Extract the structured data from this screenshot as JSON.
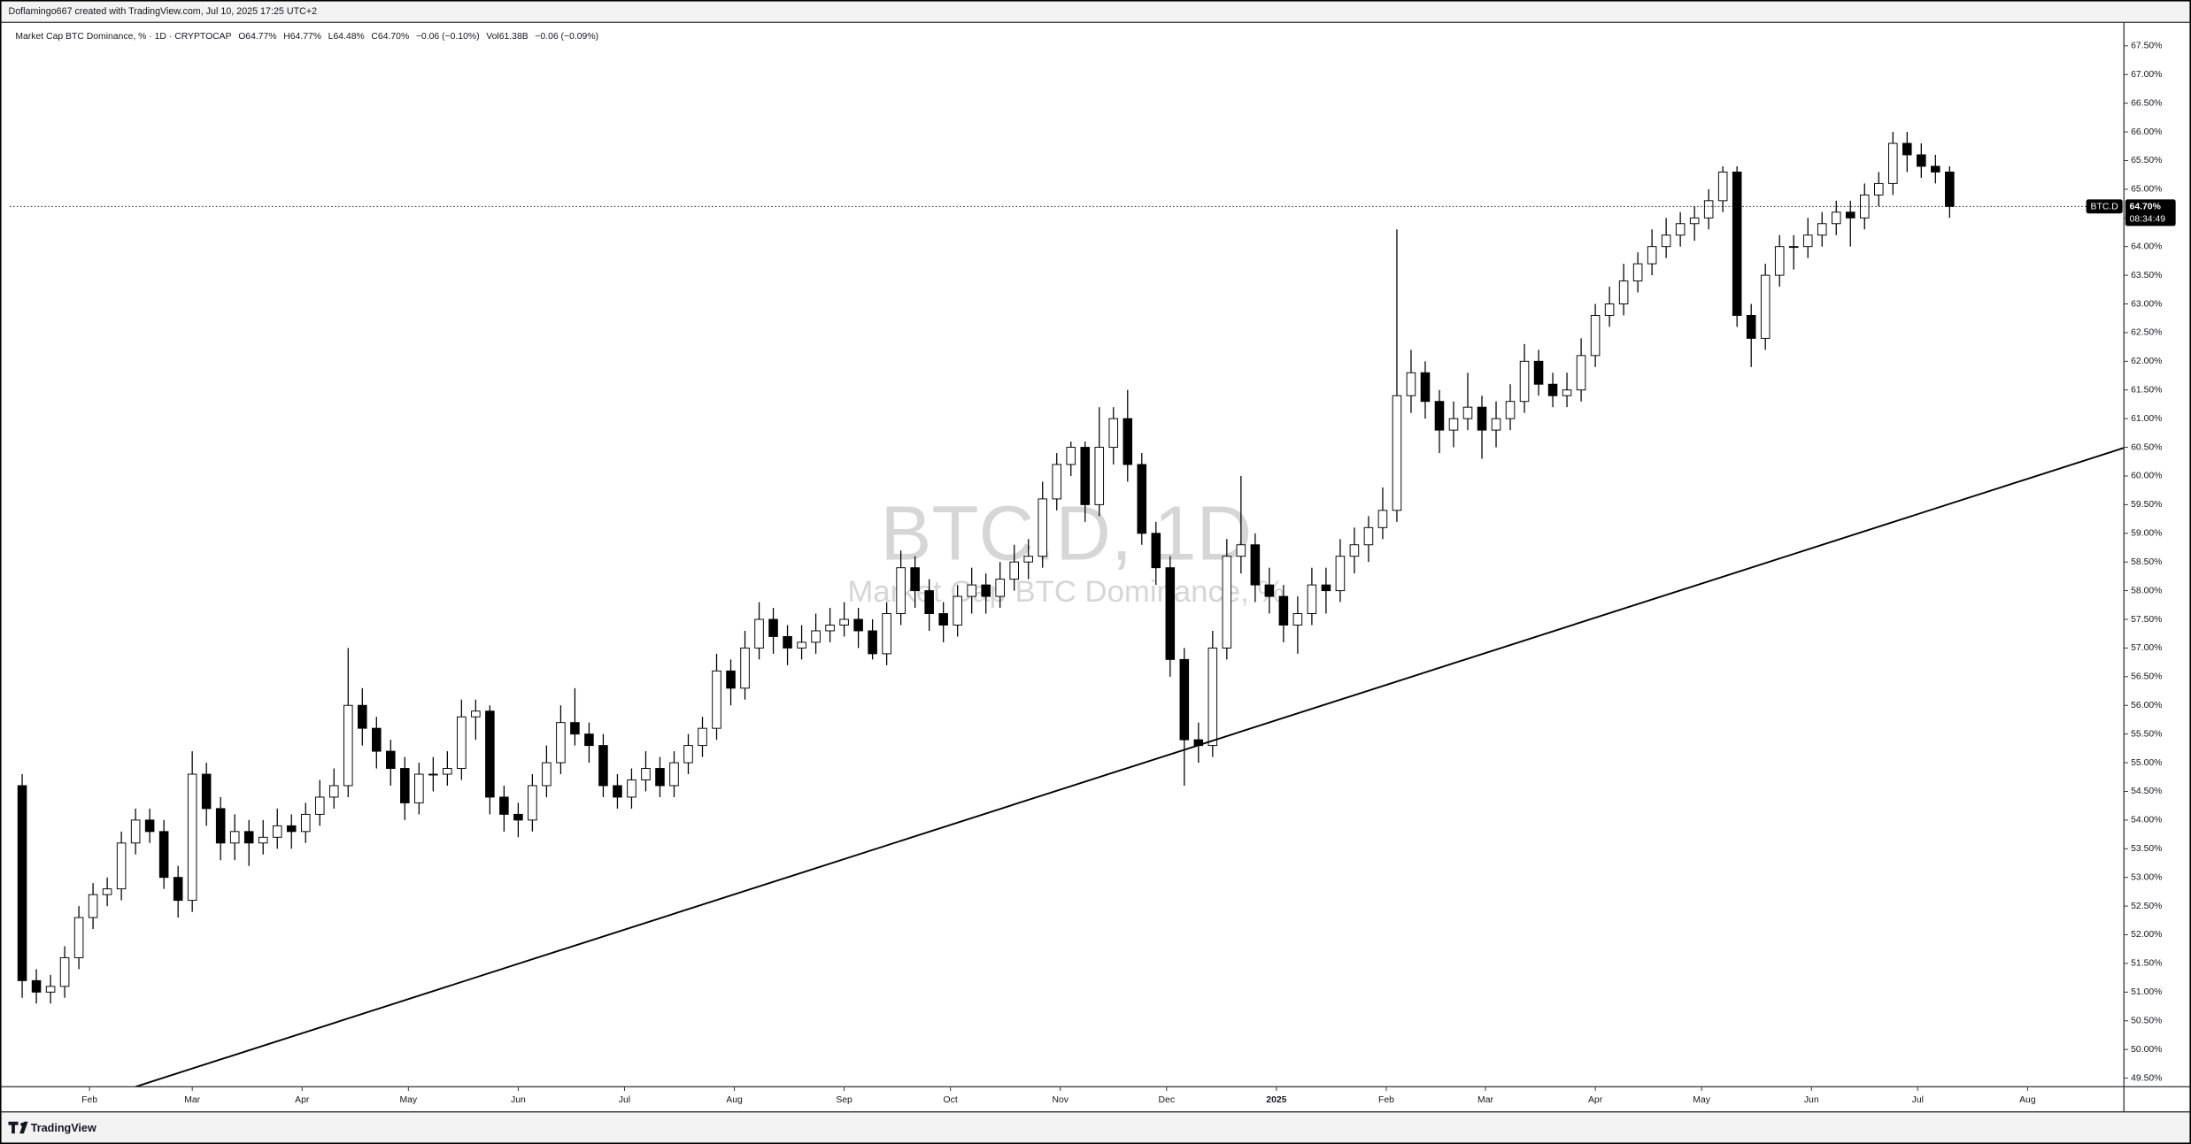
{
  "chart_data": {
    "type": "candlestick",
    "header": "Doflamingo667 created with TradingView.com, Jul 10, 2025 17:25 UTC+2",
    "legend": [
      "Market Cap BTC Dominance, % · 1D · CRYPTOCAP",
      "O64.77%",
      "H64.77%",
      "L64.48%",
      "C64.70%",
      "−0.06 (−0.10%)",
      "Vol61.38B",
      "−0.06 (−0.09%)"
    ],
    "watermark": "BTC.D, 1D",
    "watermark_subtitle": "Market Cap BTC Dominance, %",
    "symbol_tag": "BTC.D",
    "last_price": {
      "value": 64.7,
      "label": "64.70%"
    },
    "countdown": "08:34:49",
    "brand": "TradingView",
    "up_color": "#ffffff",
    "down_color": "#000000",
    "wick_color": "#000000",
    "trendline": {
      "x": [
        44,
        605.2
      ],
      "y": [
        49.35,
        60.49
      ],
      "color": "#000000"
    },
    "xlim": [
      8.5,
      605.2
    ],
    "ylim": [
      49.35,
      67.91
    ],
    "xticks": [
      {
        "value": 31,
        "label": "Feb"
      },
      {
        "value": 60,
        "label": "Mar"
      },
      {
        "value": 91,
        "label": "Apr"
      },
      {
        "value": 121,
        "label": "May"
      },
      {
        "value": 152,
        "label": "Jun"
      },
      {
        "value": 182,
        "label": "Jul"
      },
      {
        "value": 213,
        "label": "Aug"
      },
      {
        "value": 244,
        "label": "Sep"
      },
      {
        "value": 274,
        "label": "Oct"
      },
      {
        "value": 305,
        "label": "Nov"
      },
      {
        "value": 335,
        "label": "Dec"
      },
      {
        "value": 366,
        "label": "2025"
      },
      {
        "value": 397,
        "label": "Feb"
      },
      {
        "value": 425,
        "label": "Mar"
      },
      {
        "value": 456,
        "label": "Apr"
      },
      {
        "value": 486,
        "label": "May"
      },
      {
        "value": 517,
        "label": "Jun"
      },
      {
        "value": 547,
        "label": "Jul"
      },
      {
        "value": 578,
        "label": "Aug"
      }
    ],
    "yticks": [
      {
        "value": 49.5,
        "label": "49.50%"
      },
      {
        "value": 50,
        "label": "50.00%"
      },
      {
        "value": 50.5,
        "label": "50.50%"
      },
      {
        "value": 51,
        "label": "51.00%"
      },
      {
        "value": 51.5,
        "label": "51.50%"
      },
      {
        "value": 52,
        "label": "52.00%"
      },
      {
        "value": 52.5,
        "label": "52.50%"
      },
      {
        "value": 53,
        "label": "53.00%"
      },
      {
        "value": 53.5,
        "label": "53.50%"
      },
      {
        "value": 54,
        "label": "54.00%"
      },
      {
        "value": 54.5,
        "label": "54.50%"
      },
      {
        "value": 55,
        "label": "55.00%"
      },
      {
        "value": 55.5,
        "label": "55.50%"
      },
      {
        "value": 56,
        "label": "56.00%"
      },
      {
        "value": 56.5,
        "label": "56.50%"
      },
      {
        "value": 57,
        "label": "57.00%"
      },
      {
        "value": 57.5,
        "label": "57.50%"
      },
      {
        "value": 58,
        "label": "58.00%"
      },
      {
        "value": 58.5,
        "label": "58.50%"
      },
      {
        "value": 59,
        "label": "59.00%"
      },
      {
        "value": 59.5,
        "label": "59.50%"
      },
      {
        "value": 60,
        "label": "60.00%"
      },
      {
        "value": 60.5,
        "label": "60.50%"
      },
      {
        "value": 61,
        "label": "61.00%"
      },
      {
        "value": 61.5,
        "label": "61.50%"
      },
      {
        "value": 62,
        "label": "62.00%"
      },
      {
        "value": 62.5,
        "label": "62.50%"
      },
      {
        "value": 63,
        "label": "63.00%"
      },
      {
        "value": 63.5,
        "label": "63.50%"
      },
      {
        "value": 64,
        "label": "64.00%"
      },
      {
        "value": 64.5,
        "label": "64.50%"
      },
      {
        "value": 65,
        "label": "65.00%"
      },
      {
        "value": 65.5,
        "label": "65.50%"
      },
      {
        "value": 66,
        "label": "66.00%"
      },
      {
        "value": 66.5,
        "label": "66.50%"
      },
      {
        "value": 67,
        "label": "67.00%"
      },
      {
        "value": 67.5,
        "label": "67.50%"
      }
    ],
    "x": [
      12,
      16,
      20,
      24,
      28,
      32,
      36,
      40,
      44,
      48,
      52,
      56,
      60,
      64,
      68,
      72,
      76,
      80,
      84,
      88,
      92,
      96,
      100,
      104,
      108,
      112,
      116,
      120,
      124,
      128,
      132,
      136,
      140,
      144,
      148,
      152,
      156,
      160,
      164,
      168,
      172,
      176,
      180,
      184,
      188,
      192,
      196,
      200,
      204,
      208,
      212,
      216,
      220,
      224,
      228,
      232,
      236,
      240,
      244,
      248,
      252,
      256,
      260,
      264,
      268,
      272,
      276,
      280,
      284,
      288,
      292,
      296,
      300,
      304,
      308,
      312,
      316,
      320,
      324,
      328,
      332,
      336,
      340,
      344,
      348,
      352,
      356,
      360,
      364,
      368,
      372,
      376,
      380,
      384,
      388,
      392,
      396,
      400,
      404,
      408,
      412,
      416,
      420,
      424,
      428,
      432,
      436,
      440,
      444,
      448,
      452,
      456,
      460,
      464,
      468,
      472,
      476,
      480,
      484,
      488,
      492,
      496,
      500,
      504,
      508,
      512,
      516,
      520,
      524,
      528,
      532,
      536,
      540,
      544,
      548,
      552,
      556
    ],
    "ohlc": [
      [
        54.6,
        54.8,
        50.9,
        51.2
      ],
      [
        51.2,
        51.4,
        50.8,
        51.0
      ],
      [
        51.0,
        51.3,
        50.8,
        51.1
      ],
      [
        51.1,
        51.8,
        50.9,
        51.6
      ],
      [
        51.6,
        52.5,
        51.4,
        52.3
      ],
      [
        52.3,
        52.9,
        52.1,
        52.7
      ],
      [
        52.7,
        53.0,
        52.5,
        52.8
      ],
      [
        52.8,
        53.8,
        52.6,
        53.6
      ],
      [
        53.6,
        54.2,
        53.4,
        54.0
      ],
      [
        54.0,
        54.2,
        53.6,
        53.8
      ],
      [
        53.8,
        54.0,
        52.8,
        53.0
      ],
      [
        53.0,
        53.2,
        52.3,
        52.6
      ],
      [
        52.6,
        55.2,
        52.4,
        54.8
      ],
      [
        54.8,
        55.0,
        53.9,
        54.2
      ],
      [
        54.2,
        54.4,
        53.3,
        53.6
      ],
      [
        53.6,
        54.1,
        53.3,
        53.8
      ],
      [
        53.8,
        54.0,
        53.2,
        53.6
      ],
      [
        53.6,
        54.0,
        53.4,
        53.7
      ],
      [
        53.7,
        54.2,
        53.5,
        53.9
      ],
      [
        53.9,
        54.1,
        53.5,
        53.8
      ],
      [
        53.8,
        54.3,
        53.6,
        54.1
      ],
      [
        54.1,
        54.7,
        53.9,
        54.4
      ],
      [
        54.4,
        54.9,
        54.2,
        54.6
      ],
      [
        54.6,
        57.0,
        54.4,
        56.0
      ],
      [
        56.0,
        56.3,
        55.3,
        55.6
      ],
      [
        55.6,
        55.8,
        54.9,
        55.2
      ],
      [
        55.2,
        55.4,
        54.6,
        54.9
      ],
      [
        54.9,
        55.1,
        54.0,
        54.3
      ],
      [
        54.3,
        55.0,
        54.1,
        54.8
      ],
      [
        54.8,
        55.1,
        54.5,
        54.8
      ],
      [
        54.8,
        55.2,
        54.6,
        54.9
      ],
      [
        54.9,
        56.1,
        54.7,
        55.8
      ],
      [
        55.8,
        56.1,
        55.4,
        55.9
      ],
      [
        55.9,
        56.0,
        54.1,
        54.4
      ],
      [
        54.4,
        54.6,
        53.8,
        54.1
      ],
      [
        54.1,
        54.3,
        53.7,
        54.0
      ],
      [
        54.0,
        54.8,
        53.8,
        54.6
      ],
      [
        54.6,
        55.3,
        54.4,
        55.0
      ],
      [
        55.0,
        56.0,
        54.8,
        55.7
      ],
      [
        55.7,
        56.3,
        55.3,
        55.5
      ],
      [
        55.5,
        55.7,
        55.0,
        55.3
      ],
      [
        55.3,
        55.5,
        54.4,
        54.6
      ],
      [
        54.6,
        54.8,
        54.2,
        54.4
      ],
      [
        54.4,
        54.9,
        54.2,
        54.7
      ],
      [
        54.7,
        55.2,
        54.5,
        54.9
      ],
      [
        54.9,
        55.1,
        54.4,
        54.6
      ],
      [
        54.6,
        55.2,
        54.4,
        55.0
      ],
      [
        55.0,
        55.5,
        54.8,
        55.3
      ],
      [
        55.3,
        55.8,
        55.1,
        55.6
      ],
      [
        55.6,
        56.9,
        55.4,
        56.6
      ],
      [
        56.6,
        56.8,
        56.0,
        56.3
      ],
      [
        56.3,
        57.3,
        56.1,
        57.0
      ],
      [
        57.0,
        57.8,
        56.8,
        57.5
      ],
      [
        57.5,
        57.7,
        56.9,
        57.2
      ],
      [
        57.2,
        57.4,
        56.7,
        57.0
      ],
      [
        57.0,
        57.4,
        56.8,
        57.1
      ],
      [
        57.1,
        57.6,
        56.9,
        57.3
      ],
      [
        57.3,
        57.7,
        57.1,
        57.4
      ],
      [
        57.4,
        57.8,
        57.2,
        57.5
      ],
      [
        57.5,
        57.7,
        57.0,
        57.3
      ],
      [
        57.3,
        57.5,
        56.8,
        56.9
      ],
      [
        56.9,
        57.8,
        56.7,
        57.6
      ],
      [
        57.6,
        58.7,
        57.4,
        58.4
      ],
      [
        58.4,
        58.6,
        57.7,
        58.0
      ],
      [
        58.0,
        58.2,
        57.3,
        57.6
      ],
      [
        57.6,
        57.8,
        57.1,
        57.4
      ],
      [
        57.4,
        58.1,
        57.2,
        57.9
      ],
      [
        57.9,
        58.4,
        57.6,
        58.1
      ],
      [
        58.1,
        58.3,
        57.6,
        57.9
      ],
      [
        57.9,
        58.5,
        57.7,
        58.2
      ],
      [
        58.2,
        58.8,
        58.0,
        58.5
      ],
      [
        58.5,
        58.9,
        58.2,
        58.6
      ],
      [
        58.6,
        59.9,
        58.4,
        59.6
      ],
      [
        59.6,
        60.4,
        59.4,
        60.2
      ],
      [
        60.2,
        60.6,
        60.0,
        60.5
      ],
      [
        60.5,
        60.6,
        59.2,
        59.5
      ],
      [
        59.5,
        61.2,
        59.3,
        60.5
      ],
      [
        60.5,
        61.2,
        60.2,
        61.0
      ],
      [
        61.0,
        61.5,
        59.9,
        60.2
      ],
      [
        60.2,
        60.4,
        58.8,
        59.0
      ],
      [
        59.0,
        59.2,
        58.1,
        58.4
      ],
      [
        58.4,
        58.6,
        56.5,
        56.8
      ],
      [
        56.8,
        57.0,
        54.6,
        55.4
      ],
      [
        55.4,
        55.7,
        55.0,
        55.3
      ],
      [
        55.3,
        57.3,
        55.1,
        57.0
      ],
      [
        57.0,
        58.9,
        56.8,
        58.6
      ],
      [
        58.6,
        60.0,
        58.3,
        58.8
      ],
      [
        58.8,
        59.0,
        57.8,
        58.1
      ],
      [
        58.1,
        58.4,
        57.6,
        57.9
      ],
      [
        57.9,
        58.1,
        57.1,
        57.4
      ],
      [
        57.4,
        57.9,
        56.9,
        57.6
      ],
      [
        57.6,
        58.4,
        57.4,
        58.1
      ],
      [
        58.1,
        58.4,
        57.6,
        58.0
      ],
      [
        58.0,
        58.9,
        57.8,
        58.6
      ],
      [
        58.6,
        59.1,
        58.3,
        58.8
      ],
      [
        58.8,
        59.3,
        58.5,
        59.1
      ],
      [
        59.1,
        59.8,
        58.9,
        59.4
      ],
      [
        59.4,
        64.3,
        59.2,
        61.4
      ],
      [
        61.4,
        62.2,
        61.1,
        61.8
      ],
      [
        61.8,
        62.0,
        61.0,
        61.3
      ],
      [
        61.3,
        61.5,
        60.4,
        60.8
      ],
      [
        60.8,
        61.3,
        60.5,
        61.0
      ],
      [
        61.0,
        61.8,
        60.8,
        61.2
      ],
      [
        61.2,
        61.4,
        60.3,
        60.8
      ],
      [
        60.8,
        61.3,
        60.5,
        61.0
      ],
      [
        61.0,
        61.6,
        60.8,
        61.3
      ],
      [
        61.3,
        62.3,
        61.1,
        62.0
      ],
      [
        62.0,
        62.2,
        61.4,
        61.6
      ],
      [
        61.6,
        61.8,
        61.2,
        61.4
      ],
      [
        61.4,
        61.8,
        61.2,
        61.5
      ],
      [
        61.5,
        62.4,
        61.3,
        62.1
      ],
      [
        62.1,
        63.0,
        61.9,
        62.8
      ],
      [
        62.8,
        63.3,
        62.6,
        63.0
      ],
      [
        63.0,
        63.7,
        62.8,
        63.4
      ],
      [
        63.4,
        63.9,
        63.2,
        63.7
      ],
      [
        63.7,
        64.3,
        63.5,
        64.0
      ],
      [
        64.0,
        64.5,
        63.8,
        64.2
      ],
      [
        64.2,
        64.6,
        64.0,
        64.4
      ],
      [
        64.4,
        64.7,
        64.1,
        64.5
      ],
      [
        64.5,
        65.0,
        64.3,
        64.8
      ],
      [
        64.8,
        65.4,
        64.6,
        65.3
      ],
      [
        65.3,
        65.4,
        62.6,
        62.8
      ],
      [
        62.8,
        63.0,
        61.9,
        62.4
      ],
      [
        62.4,
        63.7,
        62.2,
        63.5
      ],
      [
        63.5,
        64.2,
        63.3,
        64.0
      ],
      [
        64.0,
        64.2,
        63.6,
        64.0
      ],
      [
        64.0,
        64.5,
        63.8,
        64.2
      ],
      [
        64.2,
        64.6,
        64.0,
        64.4
      ],
      [
        64.4,
        64.8,
        64.2,
        64.6
      ],
      [
        64.6,
        64.8,
        64.0,
        64.5
      ],
      [
        64.5,
        65.1,
        64.3,
        64.9
      ],
      [
        64.9,
        65.3,
        64.7,
        65.1
      ],
      [
        65.1,
        66.0,
        64.9,
        65.8
      ],
      [
        65.8,
        66.0,
        65.3,
        65.6
      ],
      [
        65.6,
        65.8,
        65.2,
        65.4
      ],
      [
        65.4,
        65.6,
        65.1,
        65.3
      ],
      [
        65.3,
        65.4,
        64.5,
        64.7
      ]
    ]
  }
}
